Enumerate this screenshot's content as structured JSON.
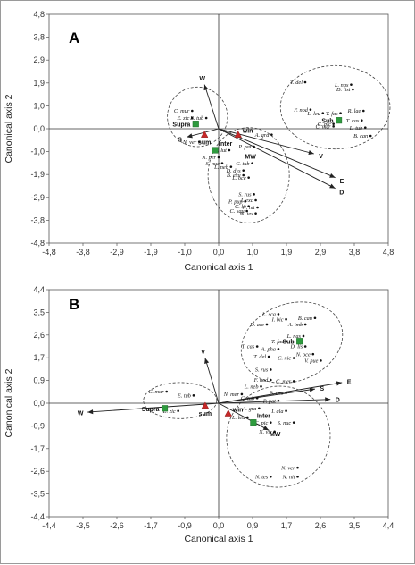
{
  "chart_data": [
    {
      "type": "scatter",
      "panel": "A",
      "xlabel": "Canonical axis 1",
      "ylabel": "Canonical axis 2",
      "xlim": [
        -4.8,
        4.8
      ],
      "ylim": [
        -4.8,
        4.8
      ],
      "xticks": [
        "-4,8",
        "-3,8",
        "-2,9",
        "-1,9",
        "-1,0",
        "0,0",
        "1,0",
        "1,9",
        "2,9",
        "3,8",
        "4,8"
      ],
      "yticks": [
        "4,8",
        "3,8",
        "2,9",
        "1,9",
        "1,0",
        "0,0",
        "-1,0",
        "-1,9",
        "-2,9",
        "-3,8",
        "-4,8"
      ],
      "arrows": [
        {
          "label": "W",
          "x": -0.4,
          "y": 1.85
        },
        {
          "label": "S",
          "x": -0.9,
          "y": -0.35
        },
        {
          "label": "V",
          "x": 2.7,
          "y": -1.05
        },
        {
          "label": "E",
          "x": 3.3,
          "y": -2.05
        },
        {
          "label": "D",
          "x": 3.3,
          "y": -2.5
        }
      ],
      "centroids": [
        {
          "label": "Supra",
          "x": -0.65,
          "y": 0.2,
          "marker": "square"
        },
        {
          "label": "Sub",
          "x": 3.4,
          "y": 0.35,
          "marker": "square"
        },
        {
          "label": "Inter",
          "x": -0.1,
          "y": -0.9,
          "marker": "square"
        },
        {
          "label": "sum",
          "x": -0.4,
          "y": -0.25,
          "marker": "triangle"
        },
        {
          "label": "win",
          "x": 0.55,
          "y": -0.25,
          "marker": "triangle"
        },
        {
          "label": "MW",
          "x": 0.9,
          "y": -1.15,
          "marker": "triangle"
        }
      ],
      "species": [
        {
          "label": "C. mur",
          "x": -0.75,
          "y": 0.75
        },
        {
          "label": "E. zic",
          "x": -0.75,
          "y": 0.45
        },
        {
          "label": "E. tub",
          "x": -0.35,
          "y": 0.45
        },
        {
          "label": "N. ver",
          "x": -0.55,
          "y": -0.55
        },
        {
          "label": "T. del",
          "x": 2.45,
          "y": 1.95
        },
        {
          "label": "L. nas",
          "x": 3.75,
          "y": 1.85
        },
        {
          "label": "D. list",
          "x": 3.8,
          "y": 1.65
        },
        {
          "label": "F. nod",
          "x": 2.6,
          "y": 0.8
        },
        {
          "label": "L. leu",
          "x": 2.95,
          "y": 0.65
        },
        {
          "label": "T. fas",
          "x": 3.45,
          "y": 0.65
        },
        {
          "label": "R. lae",
          "x": 4.1,
          "y": 0.75
        },
        {
          "label": "T. cas",
          "x": 4.05,
          "y": 0.35
        },
        {
          "label": "C. pic",
          "x": 3.25,
          "y": 0.2
        },
        {
          "label": "C. mer",
          "x": 3.25,
          "y": 0.1
        },
        {
          "label": "L. tub",
          "x": 4.15,
          "y": 0.05
        },
        {
          "label": "B. can",
          "x": 4.3,
          "y": -0.3
        },
        {
          "label": "A. gra",
          "x": 1.5,
          "y": -0.25
        },
        {
          "label": "P. pat",
          "x": 1.0,
          "y": -0.75
        },
        {
          "label": "C. lut",
          "x": 0.3,
          "y": -0.9
        },
        {
          "label": "N. per",
          "x": 0.0,
          "y": -1.2
        },
        {
          "label": "S. nuc",
          "x": 0.1,
          "y": -1.45
        },
        {
          "label": "L. neb",
          "x": 0.35,
          "y": -1.6
        },
        {
          "label": "C. tub",
          "x": 0.95,
          "y": -1.45
        },
        {
          "label": "B. exu",
          "x": 0.7,
          "y": -1.95
        },
        {
          "label": "D. dys",
          "x": 0.7,
          "y": -1.75
        },
        {
          "label": "L. oce",
          "x": 0.85,
          "y": -2.05
        },
        {
          "label": "S. rus",
          "x": 1.0,
          "y": -2.75
        },
        {
          "label": "P. pup",
          "x": 0.75,
          "y": -3.05
        },
        {
          "label": "I. exc",
          "x": 1.05,
          "y": -3.0
        },
        {
          "label": "C. lit",
          "x": 0.85,
          "y": -3.25
        },
        {
          "label": "N. nit",
          "x": 1.1,
          "y": -3.3
        },
        {
          "label": "C. squ",
          "x": 0.8,
          "y": -3.45
        },
        {
          "label": "N. tes",
          "x": 1.05,
          "y": -3.55
        }
      ]
    },
    {
      "type": "scatter",
      "panel": "B",
      "xlabel": "Canonical axis 1",
      "ylabel": "Canonical axis 2",
      "xlim": [
        -4.4,
        4.4
      ],
      "ylim": [
        -4.4,
        4.4
      ],
      "xticks": [
        "-4,4",
        "-3,5",
        "-2,6",
        "-1,7",
        "-0,9",
        "0,0",
        "0,9",
        "1,7",
        "2,6",
        "3,5",
        "4,4"
      ],
      "yticks": [
        "4,4",
        "3,5",
        "2,6",
        "1,7",
        "0,9",
        "0,0",
        "-0,9",
        "-1,7",
        "-2,6",
        "-3,5",
        "-4,4"
      ],
      "arrows": [
        {
          "label": "V",
          "x": -0.35,
          "y": 1.75
        },
        {
          "label": "W",
          "x": -3.4,
          "y": -0.35
        },
        {
          "label": "E",
          "x": 3.2,
          "y": 0.8
        },
        {
          "label": "S",
          "x": 2.5,
          "y": 0.55
        },
        {
          "label": "D",
          "x": 2.9,
          "y": 0.15
        },
        {
          "label": "MW",
          "x": 1.3,
          "y": -1.05
        }
      ],
      "centroids": [
        {
          "label": "Supra",
          "x": -1.4,
          "y": -0.2,
          "marker": "square"
        },
        {
          "label": "Sub",
          "x": 2.1,
          "y": 2.4,
          "marker": "square"
        },
        {
          "label": "Inter",
          "x": 0.9,
          "y": -0.75,
          "marker": "square"
        },
        {
          "label": "sum",
          "x": -0.35,
          "y": -0.1,
          "marker": "triangle"
        },
        {
          "label": "win",
          "x": 0.25,
          "y": -0.4,
          "marker": "triangle"
        }
      ],
      "species": [
        {
          "label": "C. mur",
          "x": -1.35,
          "y": 0.45
        },
        {
          "label": "E. tub",
          "x": -0.65,
          "y": 0.3
        },
        {
          "label": "E. zic",
          "x": -1.05,
          "y": -0.3
        },
        {
          "label": "L. sca",
          "x": 1.55,
          "y": 3.45
        },
        {
          "label": "I. bic",
          "x": 1.75,
          "y": 3.25
        },
        {
          "label": "B. can",
          "x": 2.5,
          "y": 3.3
        },
        {
          "label": "D. arc",
          "x": 1.25,
          "y": 3.05
        },
        {
          "label": "A. imb",
          "x": 2.25,
          "y": 3.05
        },
        {
          "label": "L. nas",
          "x": 2.2,
          "y": 2.6
        },
        {
          "label": "T. fas",
          "x": 1.75,
          "y": 2.4
        },
        {
          "label": "T. cas",
          "x": 1.0,
          "y": 2.2
        },
        {
          "label": "A. pha",
          "x": 1.55,
          "y": 2.1
        },
        {
          "label": "D. lis",
          "x": 2.25,
          "y": 2.2
        },
        {
          "label": "N. oce",
          "x": 2.45,
          "y": 1.9
        },
        {
          "label": "T. del",
          "x": 1.3,
          "y": 1.8
        },
        {
          "label": "C. nic",
          "x": 1.95,
          "y": 1.75
        },
        {
          "label": "V. pue",
          "x": 2.65,
          "y": 1.65
        },
        {
          "label": "S. rus",
          "x": 1.35,
          "y": 1.3
        },
        {
          "label": "F. nod",
          "x": 1.35,
          "y": 0.9
        },
        {
          "label": "C. mer",
          "x": 1.95,
          "y": 0.85
        },
        {
          "label": "L. neb",
          "x": 1.1,
          "y": 0.65
        },
        {
          "label": "N. mer",
          "x": 0.6,
          "y": 0.35
        },
        {
          "label": "B. exu",
          "x": 1.75,
          "y": 0.4
        },
        {
          "label": "C. tub",
          "x": 1.0,
          "y": 0.2
        },
        {
          "label": "P. pat",
          "x": 1.55,
          "y": 0.1
        },
        {
          "label": "A. gra",
          "x": 1.05,
          "y": -0.2
        },
        {
          "label": "I. ala",
          "x": 1.75,
          "y": -0.3
        },
        {
          "label": "L. leu",
          "x": 0.75,
          "y": -0.55
        },
        {
          "label": "C. pic",
          "x": 1.35,
          "y": -0.75
        },
        {
          "label": "S. nuc",
          "x": 1.95,
          "y": -0.75
        },
        {
          "label": "N. vir",
          "x": 1.45,
          "y": -1.1
        },
        {
          "label": "N. ver",
          "x": 2.05,
          "y": -2.5
        },
        {
          "label": "N. tes",
          "x": 1.35,
          "y": -2.85
        },
        {
          "label": "N. nit",
          "x": 2.05,
          "y": -2.85
        }
      ]
    }
  ]
}
